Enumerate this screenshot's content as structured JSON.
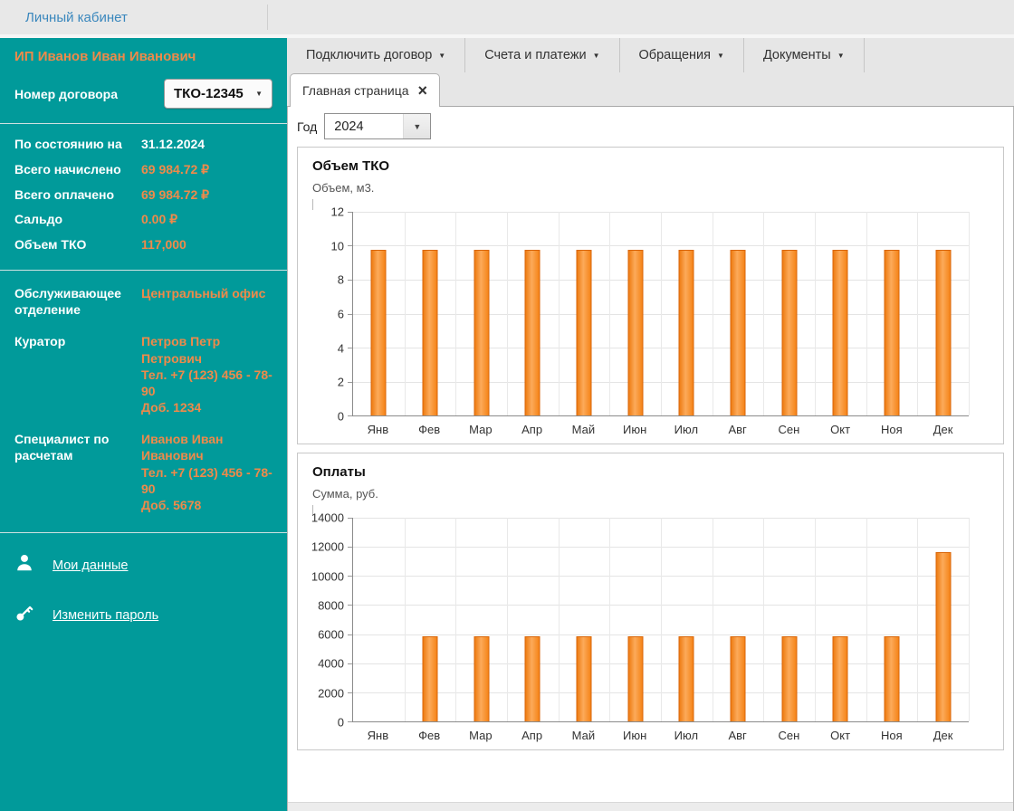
{
  "top_bar": {
    "title": "Личный кабинет"
  },
  "sidebar": {
    "account_name": "ИП Иванов Иван Иванович",
    "contract_label": "Номер договора",
    "contract_value": "ТКО-12345",
    "stats": [
      {
        "label": "По состоянию на",
        "value": "31.12.2024",
        "accent": false
      },
      {
        "label": "Всего начислено",
        "value": "69 984.72 ₽",
        "accent": true
      },
      {
        "label": "Всего оплачено",
        "value": "69 984.72 ₽",
        "accent": true
      },
      {
        "label": "Сальдо",
        "value": "0.00 ₽",
        "accent": true
      },
      {
        "label": "Объем ТКО",
        "value": "117,000",
        "accent": true
      }
    ],
    "contacts": [
      {
        "label": "Обслуживающее отделение",
        "lines": [
          "Центральный офис"
        ]
      },
      {
        "label": "Куратор",
        "lines": [
          "Петров Петр Петрович",
          "Тел. +7 (123) 456 - 78-90",
          "Доб. 1234"
        ]
      },
      {
        "label": "Специалист по расчетам",
        "lines": [
          "Иванов Иван Иванович",
          "Тел. +7 (123) 456 - 78-90",
          "Доб. 5678"
        ]
      }
    ],
    "links": [
      {
        "label": "Мои данные",
        "icon": "user-icon"
      },
      {
        "label": "Изменить пароль",
        "icon": "key-icon"
      }
    ]
  },
  "menu": {
    "items": [
      "Подключить договор",
      "Счета и платежи",
      "Обращения",
      "Документы"
    ]
  },
  "tab": {
    "label": "Главная страница",
    "close": "×"
  },
  "filter": {
    "label": "Год",
    "value": "2024"
  },
  "colors": {
    "sidebar_teal": "#019a9a",
    "accent_orange": "#ef8a4a",
    "bar_fill": "#f58418",
    "bar_border": "#d9660a",
    "link_blue": "#3a87bd"
  },
  "chart_data": [
    {
      "type": "bar",
      "title": "Объем ТКО",
      "ylabel": "Объем, м3.",
      "categories": [
        "Янв",
        "Фев",
        "Мар",
        "Апр",
        "Май",
        "Июн",
        "Июл",
        "Авг",
        "Сен",
        "Окт",
        "Ноя",
        "Дек"
      ],
      "values": [
        9.75,
        9.75,
        9.75,
        9.75,
        9.75,
        9.75,
        9.75,
        9.75,
        9.75,
        9.75,
        9.75,
        9.75
      ],
      "ylim": [
        0,
        12
      ],
      "ytick_step": 2,
      "grid": true,
      "legend": "none"
    },
    {
      "type": "bar",
      "title": "Оплаты",
      "ylabel": "Сумма, руб.",
      "categories": [
        "Янв",
        "Фев",
        "Мар",
        "Апр",
        "Май",
        "Июн",
        "Июл",
        "Авг",
        "Сен",
        "Окт",
        "Ноя",
        "Дек"
      ],
      "values": [
        0,
        5832.06,
        5832.06,
        5832.06,
        5832.06,
        5832.06,
        5832.06,
        5832.06,
        5832.06,
        5832.06,
        5832.06,
        11664.12
      ],
      "ylim": [
        0,
        14000
      ],
      "ytick_step": 2000,
      "grid": true,
      "legend": "none"
    }
  ]
}
